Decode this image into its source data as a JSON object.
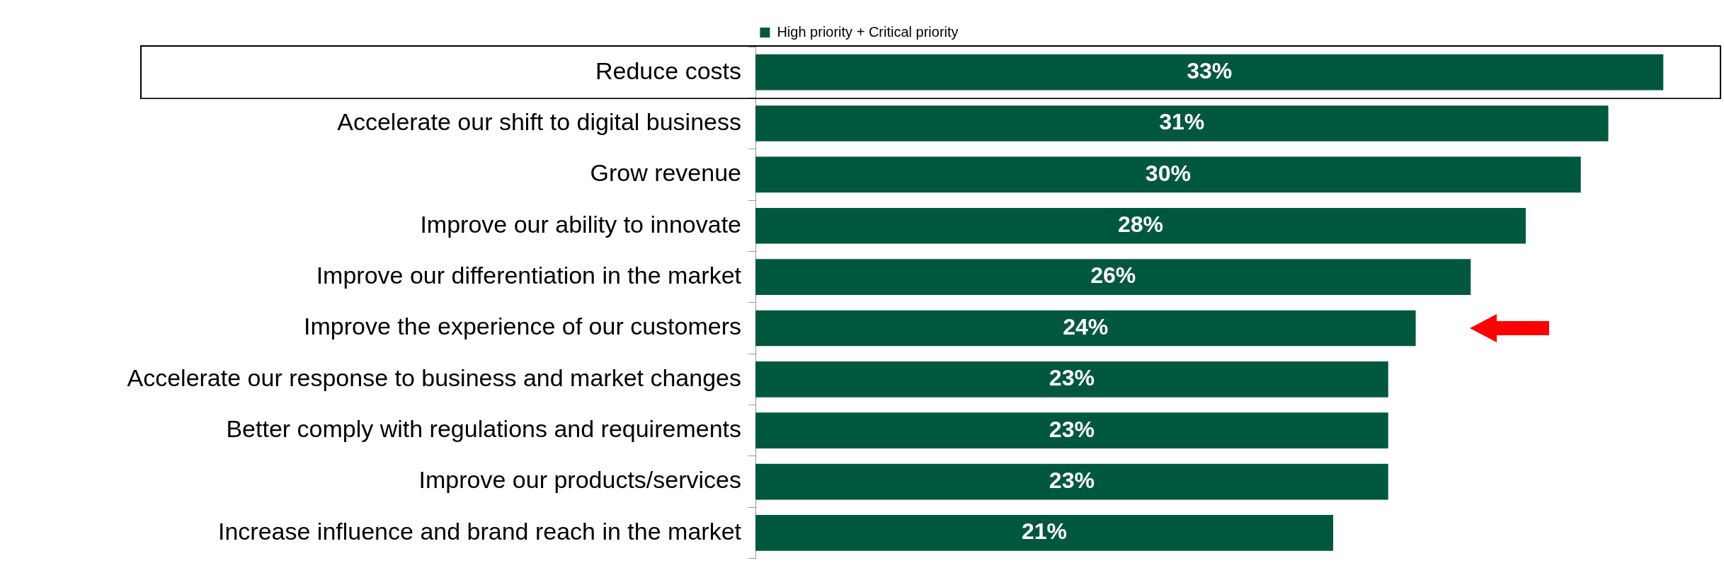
{
  "chart_data": {
    "type": "bar",
    "orientation": "horizontal",
    "categories": [
      "Reduce costs",
      "Accelerate our shift to digital business",
      "Grow revenue",
      "Improve our ability to innovate",
      "Improve our differentiation in the market",
      "Improve the experience of our customers",
      "Accelerate our response to business and market changes",
      "Better comply with regulations and requirements",
      "Improve our products/services",
      "Increase influence and brand reach in the market"
    ],
    "series": [
      {
        "name": "High priority + Critical priority",
        "color": "#00573f",
        "values": [
          33,
          31,
          30,
          28,
          26,
          24,
          23,
          23,
          23,
          21
        ],
        "value_labels": [
          "33%",
          "31%",
          "30%",
          "28%",
          "26%",
          "24%",
          "23%",
          "23%",
          "23%",
          "21%"
        ]
      }
    ],
    "tick_labels": "y",
    "legend": "top",
    "grid": false
  }
}
